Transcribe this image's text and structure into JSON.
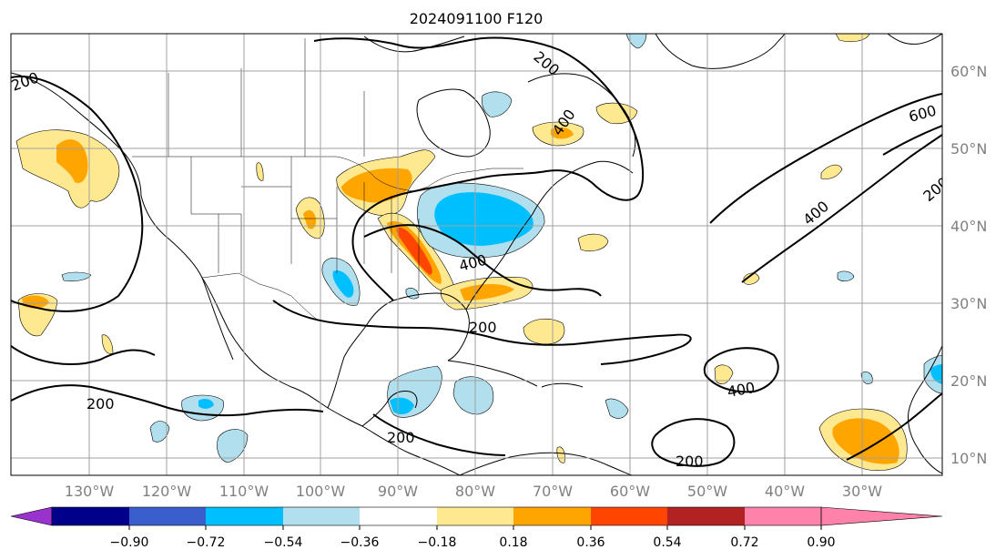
{
  "title": "2024091100 F120",
  "map": {
    "longitude_labels": [
      "130°W",
      "120°W",
      "110°W",
      "100°W",
      "90°W",
      "80°W",
      "70°W",
      "60°W",
      "50°W",
      "40°W",
      "30°W"
    ],
    "latitude_labels": [
      "60°N",
      "50°N",
      "40°N",
      "30°N",
      "20°N",
      "10°N"
    ],
    "contour_labels": [
      "200",
      "400",
      "600",
      "200",
      "400",
      "200",
      "400",
      "200",
      "200",
      "400",
      "200",
      "200"
    ],
    "colors": {
      "coast": "#000000",
      "grid": "#a0a0a0",
      "contour": "#000000"
    }
  },
  "colorbar": {
    "colors": [
      "#9a32cd",
      "#00008b",
      "#3a5fcd",
      "#00bfff",
      "#b2dfee",
      "#ffffff",
      "#ffe990",
      "#ffa500",
      "#ff4500",
      "#b22222",
      "#ff82ab"
    ],
    "tick_labels": [
      "−0.90",
      "−0.72",
      "−0.54",
      "−0.36",
      "−0.18",
      "0.18",
      "0.36",
      "0.54",
      "0.72",
      "0.90"
    ]
  }
}
